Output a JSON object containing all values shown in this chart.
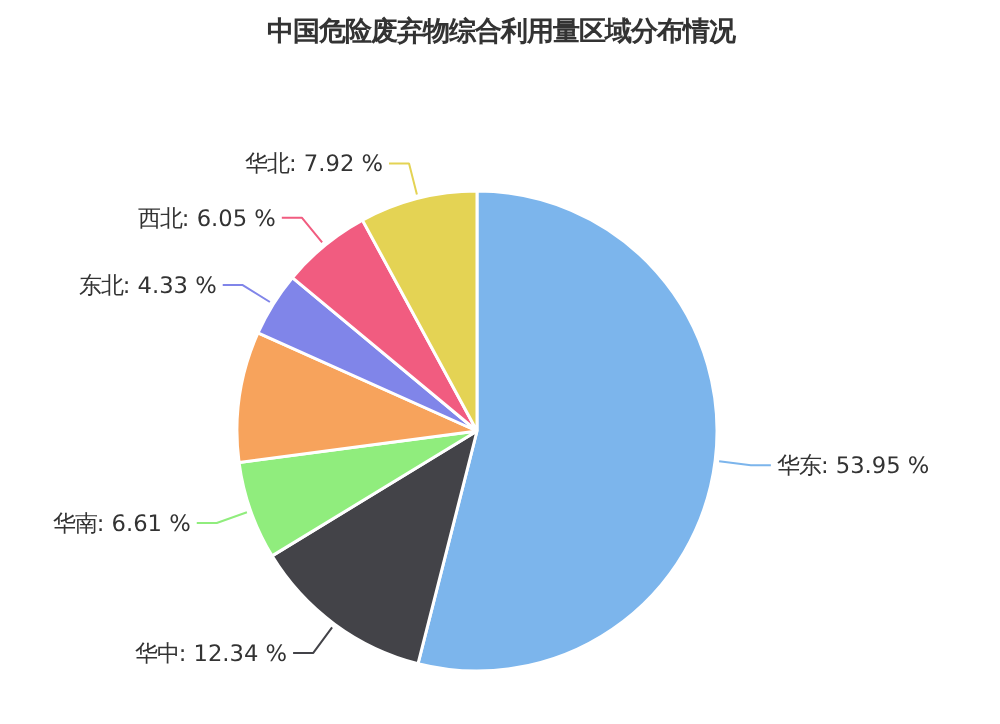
{
  "chart_data": {
    "type": "pie",
    "title": "中国危险废弃物综合利用量区域分布情况",
    "categories": [
      "华东",
      "华中",
      "华南",
      null,
      "东北",
      "西北",
      "华北"
    ],
    "values": [
      53.95,
      12.34,
      6.61,
      8.8,
      4.33,
      6.05,
      7.92
    ],
    "value_labels": [
      "53.95 %",
      "12.34 %",
      "6.61 %",
      null,
      "4.33 %",
      "6.05 %",
      "7.92 %"
    ],
    "colors": [
      "#7cb5ec",
      "#434348",
      "#90ed7d",
      "#f7a35c",
      "#8085e9",
      "#f15c80",
      "#e4d354"
    ]
  }
}
